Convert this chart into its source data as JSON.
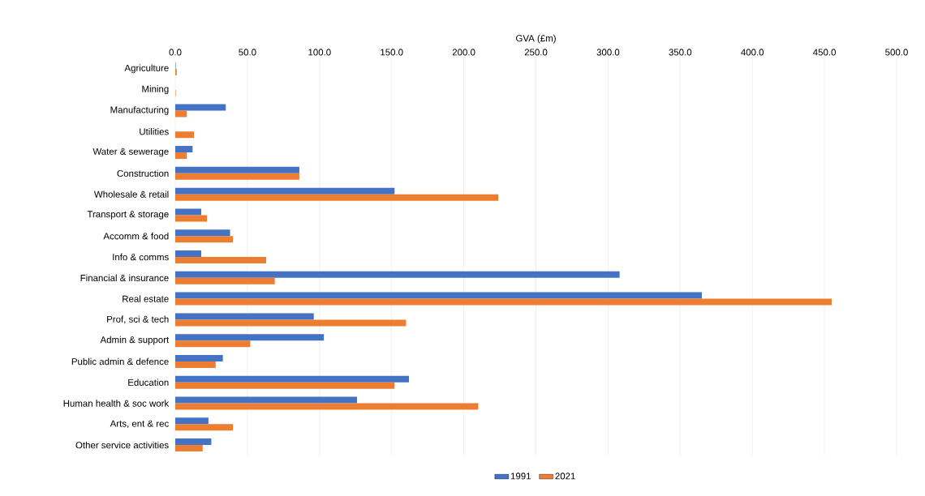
{
  "chart_data": {
    "type": "bar",
    "orientation": "horizontal",
    "xlabel": "GVA (£m)",
    "categories": [
      "Agriculture",
      "Mining",
      "Manufacturing",
      "Utilities",
      "Water & sewerage",
      "Construction",
      "Wholesale & retail",
      "Transport & storage",
      "Accomm & food",
      "Info & comms",
      "Financial & insurance",
      "Real estate",
      "Prof, sci & tech",
      "Admin & support",
      "Public admin & defence",
      "Education",
      "Human health & soc work",
      "Arts, ent & rec",
      "Other service activities"
    ],
    "series": [
      {
        "name": "1991",
        "color": "#4472c4",
        "values": [
          0.3,
          0,
          35,
          null,
          12,
          86,
          152,
          18,
          38,
          18,
          308,
          365,
          96,
          103,
          33,
          162,
          126,
          23,
          25
        ]
      },
      {
        "name": "2021",
        "color": "#ed7d31",
        "values": [
          1,
          0.3,
          8,
          13,
          8,
          86,
          224,
          22,
          40,
          63,
          69,
          455,
          160,
          52,
          28,
          152,
          210,
          40,
          19
        ]
      }
    ],
    "xlim": [
      0,
      500
    ],
    "xticks": [
      {
        "value": 0,
        "label": "0.0"
      },
      {
        "value": 50,
        "label": "50.0"
      },
      {
        "value": 100,
        "label": "100.0"
      },
      {
        "value": 150,
        "label": "150.0"
      },
      {
        "value": 200,
        "label": "200.0"
      },
      {
        "value": 250,
        "label": "250.0"
      },
      {
        "value": 300,
        "label": "300.0"
      },
      {
        "value": 350,
        "label": "350.0"
      },
      {
        "value": 400,
        "label": "400.0"
      },
      {
        "value": 450,
        "label": "450.0"
      },
      {
        "value": 500,
        "label": "500.0"
      }
    ],
    "grid": "x",
    "legend": "bottom"
  }
}
